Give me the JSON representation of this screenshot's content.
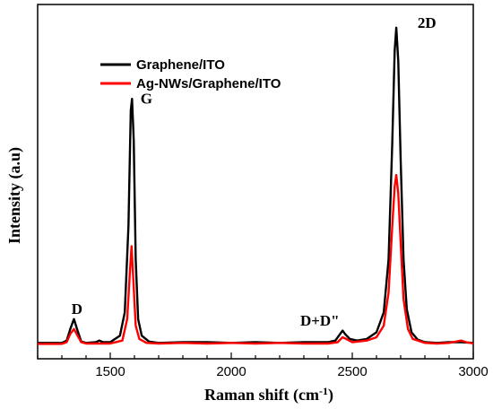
{
  "chart_data": {
    "type": "line",
    "xlabel": "Raman shift (cm",
    "xlabel_sup": "-1",
    "xlabel_tail": ")",
    "ylabel": "Intensity (a.u)",
    "xlim": [
      1200,
      3000
    ],
    "ylim": [
      0,
      1.07
    ],
    "xticks": [
      1500,
      2000,
      2500,
      3000
    ],
    "ytick_labels": "none",
    "legend_position": "top-left",
    "series": [
      {
        "name": "Graphene/ITO",
        "color": "#000000",
        "points": [
          [
            1200,
            0.048
          ],
          [
            1300,
            0.048
          ],
          [
            1320,
            0.055
          ],
          [
            1335,
            0.09
          ],
          [
            1350,
            0.12
          ],
          [
            1365,
            0.085
          ],
          [
            1380,
            0.052
          ],
          [
            1400,
            0.048
          ],
          [
            1440,
            0.05
          ],
          [
            1455,
            0.055
          ],
          [
            1470,
            0.05
          ],
          [
            1500,
            0.05
          ],
          [
            1540,
            0.07
          ],
          [
            1560,
            0.14
          ],
          [
            1575,
            0.4
          ],
          [
            1585,
            0.75
          ],
          [
            1590,
            0.785
          ],
          [
            1597,
            0.66
          ],
          [
            1605,
            0.3
          ],
          [
            1615,
            0.12
          ],
          [
            1630,
            0.07
          ],
          [
            1660,
            0.052
          ],
          [
            1700,
            0.048
          ],
          [
            1800,
            0.05
          ],
          [
            1900,
            0.05
          ],
          [
            2000,
            0.048
          ],
          [
            2100,
            0.05
          ],
          [
            2200,
            0.048
          ],
          [
            2300,
            0.05
          ],
          [
            2400,
            0.05
          ],
          [
            2430,
            0.055
          ],
          [
            2445,
            0.07
          ],
          [
            2460,
            0.085
          ],
          [
            2470,
            0.075
          ],
          [
            2490,
            0.06
          ],
          [
            2520,
            0.055
          ],
          [
            2560,
            0.06
          ],
          [
            2600,
            0.08
          ],
          [
            2630,
            0.14
          ],
          [
            2650,
            0.3
          ],
          [
            2665,
            0.65
          ],
          [
            2675,
            0.93
          ],
          [
            2682,
            1.0
          ],
          [
            2690,
            0.9
          ],
          [
            2700,
            0.6
          ],
          [
            2712,
            0.3
          ],
          [
            2725,
            0.15
          ],
          [
            2745,
            0.08
          ],
          [
            2770,
            0.058
          ],
          [
            2800,
            0.05
          ],
          [
            2850,
            0.048
          ],
          [
            2900,
            0.05
          ],
          [
            2950,
            0.05
          ],
          [
            3000,
            0.048
          ]
        ]
      },
      {
        "name": "Ag-NWs/Graphene/ITO",
        "color": "#ff0000",
        "points": [
          [
            1200,
            0.045
          ],
          [
            1300,
            0.045
          ],
          [
            1320,
            0.05
          ],
          [
            1335,
            0.075
          ],
          [
            1350,
            0.09
          ],
          [
            1365,
            0.07
          ],
          [
            1380,
            0.05
          ],
          [
            1400,
            0.046
          ],
          [
            1500,
            0.046
          ],
          [
            1550,
            0.055
          ],
          [
            1570,
            0.12
          ],
          [
            1582,
            0.27
          ],
          [
            1588,
            0.34
          ],
          [
            1595,
            0.24
          ],
          [
            1605,
            0.1
          ],
          [
            1620,
            0.06
          ],
          [
            1650,
            0.048
          ],
          [
            1700,
            0.046
          ],
          [
            1800,
            0.048
          ],
          [
            1900,
            0.046
          ],
          [
            2000,
            0.048
          ],
          [
            2100,
            0.046
          ],
          [
            2200,
            0.048
          ],
          [
            2300,
            0.046
          ],
          [
            2400,
            0.046
          ],
          [
            2440,
            0.05
          ],
          [
            2460,
            0.065
          ],
          [
            2475,
            0.06
          ],
          [
            2500,
            0.05
          ],
          [
            2560,
            0.055
          ],
          [
            2600,
            0.065
          ],
          [
            2630,
            0.1
          ],
          [
            2650,
            0.2
          ],
          [
            2665,
            0.4
          ],
          [
            2675,
            0.52
          ],
          [
            2682,
            0.555
          ],
          [
            2690,
            0.5
          ],
          [
            2700,
            0.35
          ],
          [
            2712,
            0.18
          ],
          [
            2730,
            0.09
          ],
          [
            2750,
            0.06
          ],
          [
            2800,
            0.048
          ],
          [
            2850,
            0.046
          ],
          [
            2900,
            0.048
          ],
          [
            2950,
            0.055
          ],
          [
            2970,
            0.05
          ],
          [
            3000,
            0.046
          ]
        ]
      }
    ],
    "annotations": [
      {
        "text": "D",
        "x": 1340,
        "y": 0.135
      },
      {
        "text": "G",
        "x": 1625,
        "y": 0.77
      },
      {
        "text": "D+D\"",
        "x": 2285,
        "y": 0.1
      },
      {
        "text": "2D",
        "x": 2770,
        "y": 1.0
      }
    ]
  }
}
